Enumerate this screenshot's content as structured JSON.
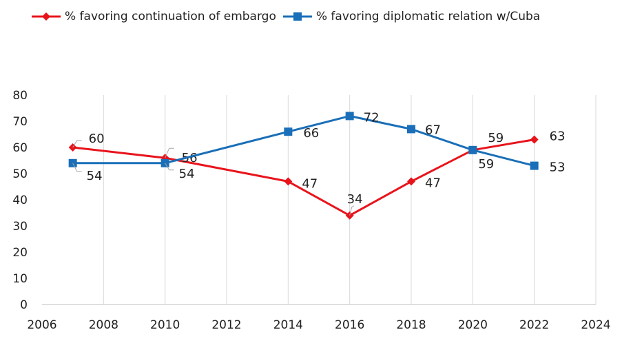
{
  "chart_data": {
    "type": "line",
    "title": "",
    "xlabel": "",
    "ylabel": "",
    "xlim": [
      2006,
      2024
    ],
    "ylim": [
      0,
      80
    ],
    "x_ticks": [
      2006,
      2008,
      2010,
      2012,
      2014,
      2016,
      2018,
      2020,
      2022,
      2024
    ],
    "y_ticks": [
      0,
      10,
      20,
      30,
      40,
      50,
      60,
      70,
      80
    ],
    "grid": "vertical",
    "legend_position": "top",
    "series": [
      {
        "name": "% favoring continuation of embargo",
        "color": "#e8141c",
        "marker": "diamond",
        "x": [
          2007,
          2010,
          2014,
          2016,
          2018,
          2020,
          2022
        ],
        "values": [
          60,
          56,
          47,
          34,
          47,
          59,
          63
        ],
        "labels": [
          "60",
          "56",
          "47",
          "34",
          "47",
          "59",
          "63"
        ]
      },
      {
        "name": "% favoring diplomatic relation w/Cuba",
        "color": "#1a6fb8",
        "marker": "square",
        "x": [
          2007,
          2010,
          2014,
          2016,
          2018,
          2020,
          2022
        ],
        "values": [
          54,
          54,
          66,
          72,
          67,
          59,
          53
        ],
        "labels": [
          "54",
          "54",
          "66",
          "72",
          "67",
          "59",
          "53"
        ]
      }
    ]
  }
}
